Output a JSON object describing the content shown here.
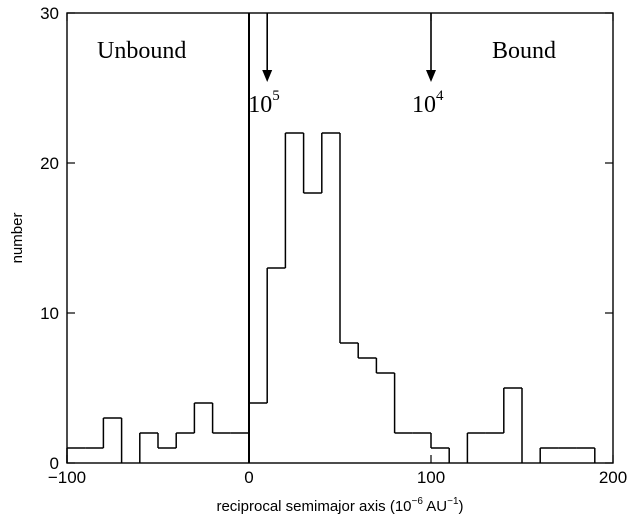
{
  "chart_data": {
    "type": "histogram",
    "xlabel_parts": [
      "reciprocal semimajor axis (10",
      "−6",
      " AU",
      "−1",
      ")"
    ],
    "ylabel": "number",
    "xlim": [
      -100,
      200
    ],
    "ylim": [
      0,
      30
    ],
    "x_ticks": [
      "−100",
      "0",
      "100",
      "200"
    ],
    "y_ticks": [
      "0",
      "10",
      "20",
      "30"
    ],
    "x_tick_values": [
      -100,
      0,
      100,
      200
    ],
    "y_tick_values": [
      0,
      10,
      20,
      30
    ],
    "bin_width": 10,
    "bins": [
      {
        "x0": -100,
        "value": 1
      },
      {
        "x0": -90,
        "value": 1
      },
      {
        "x0": -80,
        "value": 3
      },
      {
        "x0": -70,
        "value": 0
      },
      {
        "x0": -60,
        "value": 2
      },
      {
        "x0": -50,
        "value": 1
      },
      {
        "x0": -40,
        "value": 2
      },
      {
        "x0": -30,
        "value": 4
      },
      {
        "x0": -20,
        "value": 2
      },
      {
        "x0": -10,
        "value": 2
      },
      {
        "x0": 0,
        "value": 4
      },
      {
        "x0": 10,
        "value": 13
      },
      {
        "x0": 20,
        "value": 22
      },
      {
        "x0": 30,
        "value": 18
      },
      {
        "x0": 40,
        "value": 22
      },
      {
        "x0": 50,
        "value": 8
      },
      {
        "x0": 60,
        "value": 7
      },
      {
        "x0": 70,
        "value": 6
      },
      {
        "x0": 80,
        "value": 2
      },
      {
        "x0": 90,
        "value": 2
      },
      {
        "x0": 100,
        "value": 1
      },
      {
        "x0": 110,
        "value": 0
      },
      {
        "x0": 120,
        "value": 2
      },
      {
        "x0": 130,
        "value": 2
      },
      {
        "x0": 140,
        "value": 5
      },
      {
        "x0": 150,
        "value": 0
      },
      {
        "x0": 160,
        "value": 1
      },
      {
        "x0": 170,
        "value": 1
      },
      {
        "x0": 180,
        "value": 1
      }
    ],
    "divider_x": 0,
    "region_labels": {
      "left": "Unbound",
      "right": "Bound"
    },
    "annotations": [
      {
        "x": 10,
        "base": "10",
        "exp": "5"
      },
      {
        "x": 100,
        "base": "10",
        "exp": "4"
      }
    ]
  }
}
